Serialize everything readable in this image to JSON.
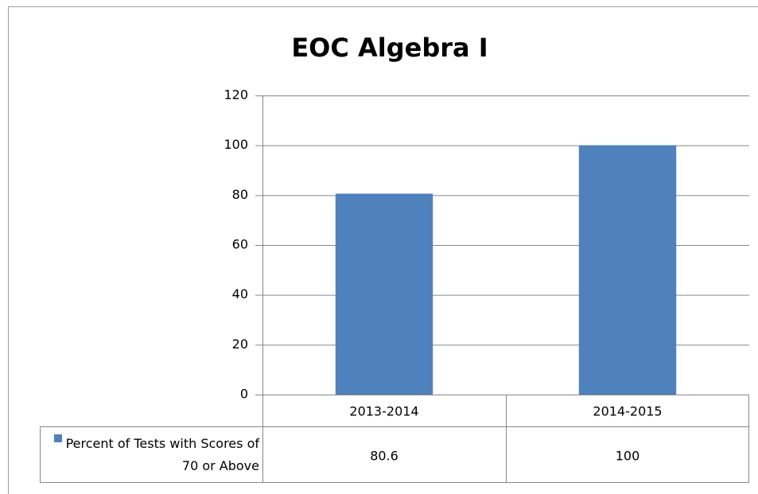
{
  "chart_data": {
    "type": "bar",
    "title": "EOC Algebra I",
    "categories": [
      "2013-2014",
      "2014-2015"
    ],
    "series": [
      {
        "name": "Percent of Tests with Scores of 70 or Above",
        "color": "#4f81bd",
        "values": [
          80.6,
          100
        ]
      }
    ],
    "ylim": [
      0,
      120
    ],
    "yticks": [
      0,
      20,
      40,
      60,
      80,
      100,
      120
    ],
    "grid": true,
    "data_table": true
  }
}
